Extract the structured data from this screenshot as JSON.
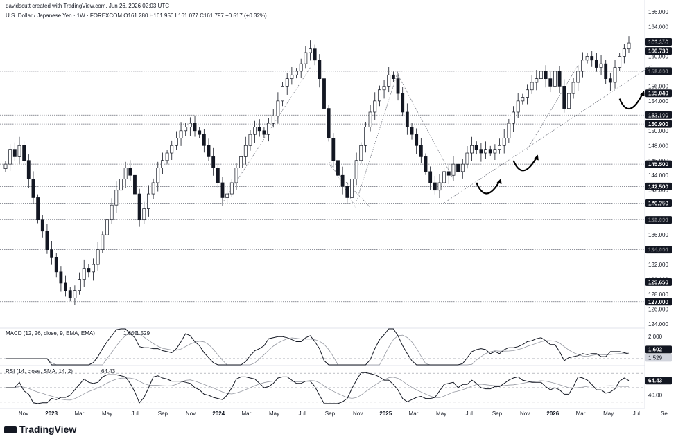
{
  "header": {
    "credit": "davidscutt created with TradingView.com, Jun 26, 2026 02:03 UTC",
    "symbol_line": "U.S. Dollar / Japanese Yen · 1W · FOREXCOM  O161.280  H161.950  L161.077  C161.797  +0.517 (+0.32%)"
  },
  "footer": {
    "logo_text": "TradingView"
  },
  "chart_data": [
    {
      "type": "candlestick",
      "name": "price",
      "ylim": [
        124,
        166
      ],
      "y_ticks": [
        124,
        126,
        128,
        130,
        132,
        134,
        136,
        138,
        140,
        142,
        144,
        146,
        148,
        150,
        152,
        154,
        156,
        158,
        160,
        162,
        164,
        166
      ],
      "y_tick_labels": [
        "124.000",
        "126.000",
        "128.000",
        "130.000",
        "132.000",
        "134.000",
        "136.000",
        "138.000",
        "140.000",
        "142.000",
        "144.000",
        "146.000",
        "148.000",
        "150.000",
        "152.000",
        "154.000",
        "156.000",
        "158.000",
        "160.000",
        "162.000",
        "164.000",
        "166.000"
      ],
      "x_ticks": [
        "Nov",
        "2023",
        "Mar",
        "May",
        "Jul",
        "Sep",
        "Nov",
        "2024",
        "Mar",
        "May",
        "Jul",
        "Sep",
        "Nov",
        "2025",
        "Mar",
        "May",
        "Jul",
        "Sep",
        "Nov",
        "2026",
        "Mar",
        "May",
        "Jul",
        "Se"
      ],
      "close_path": [
        145.5,
        147.5,
        146.5,
        148.0,
        146.0,
        143.5,
        141.0,
        138.0,
        136.5,
        134.0,
        133.0,
        131.0,
        129.5,
        128.5,
        127.5,
        128.5,
        130.0,
        131.5,
        131.0,
        132.0,
        134.0,
        136.0,
        138.0,
        140.0,
        142.0,
        143.5,
        145.0,
        144.0,
        141.5,
        138.0,
        139.5,
        141.5,
        143.0,
        145.0,
        146.0,
        147.0,
        148.0,
        149.0,
        150.0,
        150.5,
        151.0,
        150.0,
        149.5,
        148.0,
        146.5,
        145.0,
        143.0,
        141.0,
        141.5,
        143.0,
        145.0,
        146.5,
        148.0,
        149.5,
        150.5,
        150.0,
        149.5,
        151.0,
        152.0,
        154.0,
        156.0,
        157.0,
        157.5,
        158.0,
        159.0,
        160.5,
        161.0,
        159.5,
        157.0,
        153.0,
        149.0,
        146.0,
        144.0,
        142.5,
        141.0,
        143.5,
        146.0,
        148.0,
        150.5,
        152.5,
        154.0,
        155.5,
        156.0,
        157.5,
        157.0,
        155.0,
        152.5,
        150.5,
        149.5,
        148.0,
        146.5,
        144.5,
        143.0,
        142.0,
        143.0,
        144.5,
        144.0,
        145.5,
        144.5,
        145.5,
        147.0,
        148.0,
        147.5,
        147.0,
        147.5,
        147.0,
        147.5,
        148.0,
        149.0,
        151.0,
        152.5,
        154.0,
        154.5,
        155.5,
        156.5,
        157.0,
        158.0,
        157.0,
        156.0,
        158.0,
        156.0,
        153.0,
        155.0,
        156.5,
        158.0,
        159.5,
        160.0,
        159.5,
        158.5,
        159.0,
        157.0,
        156.5,
        158.5,
        160.0,
        161.0,
        161.8
      ],
      "horizontal_levels": [
        {
          "label": "161.950",
          "value": 161.95,
          "badge": "dark"
        },
        {
          "label": "161.797",
          "value": 161.797,
          "badge": "none"
        },
        {
          "label": "160.730",
          "value": 160.73,
          "badge": "dark"
        },
        {
          "label": "158.000",
          "value": 158.0,
          "badge": "dark"
        },
        {
          "label": "155.040",
          "value": 155.04,
          "badge": "dark"
        },
        {
          "label": "152.100",
          "value": 152.1,
          "badge": "dark"
        },
        {
          "label": "150.900",
          "value": 150.9,
          "badge": "dark"
        },
        {
          "label": "145.500",
          "value": 145.5,
          "badge": "dark"
        },
        {
          "label": "142.500",
          "value": 142.5,
          "badge": "dark"
        },
        {
          "label": "140.250",
          "value": 140.25,
          "badge": "dark"
        },
        {
          "label": "138.000",
          "value": 138.0,
          "badge": "dark"
        },
        {
          "label": "134.000",
          "value": 134.0,
          "badge": "dark"
        },
        {
          "label": "129.650",
          "value": 129.65,
          "badge": "dark"
        },
        {
          "label": "127.000",
          "value": 127.0,
          "badge": "dark"
        }
      ]
    },
    {
      "type": "line",
      "name": "macd",
      "legend": "MACD (12, 26, close, 9, EMA, EMA)",
      "value_macd": "1.602",
      "value_signal": "1.529",
      "y_ticks": [
        0,
        2
      ],
      "y_tick_labels": [
        "0.000",
        "2.000"
      ]
    },
    {
      "type": "line",
      "name": "rsi",
      "legend": "RSI (14, close, SMA, 14, 2)",
      "value": "64.43",
      "y_ticks": [
        40
      ],
      "y_tick_labels": [
        "40.00"
      ]
    }
  ]
}
